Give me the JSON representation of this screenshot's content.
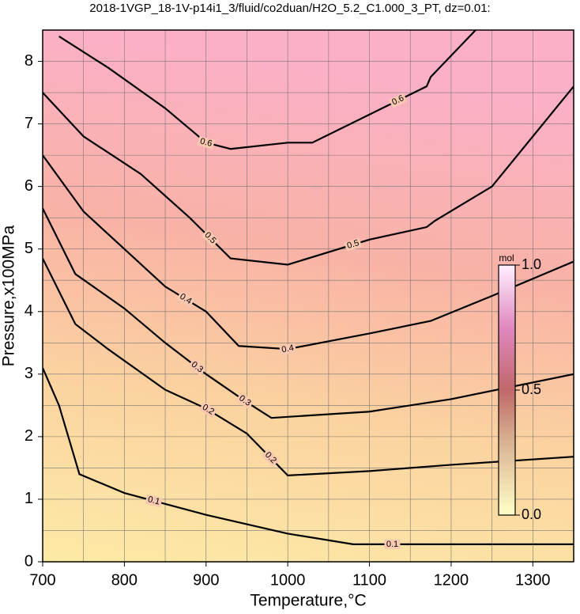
{
  "chart_data": {
    "type": "contour",
    "title": "2018-1VGP_18-1V-p14i1_3/fluid/co2duan/H2O_5.2_C1.000_3_PT, dz=0.01:",
    "xlabel": "Temperature,°C",
    "ylabel": "Pressure,x100MPa",
    "xlim": [
      700,
      1350
    ],
    "ylim": [
      0,
      8.5
    ],
    "xticks": [
      700,
      800,
      900,
      1000,
      1100,
      1200,
      1300
    ],
    "yticks": [
      0,
      1,
      2,
      3,
      4,
      5,
      6,
      7,
      8
    ],
    "xgrid": [
      750,
      800,
      850,
      900,
      950,
      1000,
      1050,
      1100,
      1150,
      1200,
      1250,
      1300
    ],
    "ygrid": [
      0.5,
      1,
      1.5,
      2,
      2.5,
      3,
      3.5,
      4,
      4.5,
      5,
      5.5,
      6,
      6.5,
      7,
      7.5,
      8
    ],
    "contours": [
      {
        "level": 0.1,
        "x": [
          700,
          720,
          745,
          800,
          900,
          1000,
          1080,
          1200,
          1350
        ],
        "y": [
          3.1,
          2.5,
          1.4,
          1.1,
          0.75,
          0.45,
          0.28,
          0.28,
          0.28
        ]
      },
      {
        "level": 0.2,
        "x": [
          700,
          740,
          780,
          850,
          900,
          950,
          1000,
          1100,
          1200,
          1350
        ],
        "y": [
          4.85,
          3.8,
          3.4,
          2.75,
          2.45,
          2.05,
          1.38,
          1.45,
          1.55,
          1.68
        ]
      },
      {
        "level": 0.3,
        "x": [
          700,
          740,
          800,
          850,
          900,
          950,
          980,
          1100,
          1200,
          1350
        ],
        "y": [
          5.65,
          4.6,
          4.05,
          3.5,
          3.0,
          2.55,
          2.3,
          2.4,
          2.6,
          3.0
        ]
      },
      {
        "level": 0.4,
        "x": [
          700,
          750,
          800,
          850,
          900,
          940,
          1000,
          1100,
          1175,
          1250,
          1350
        ],
        "y": [
          6.5,
          5.6,
          5.0,
          4.4,
          4.0,
          3.45,
          3.4,
          3.65,
          3.85,
          4.25,
          4.8
        ]
      },
      {
        "level": 0.5,
        "x": [
          700,
          750,
          820,
          880,
          930,
          1000,
          1100,
          1170,
          1180,
          1250,
          1350
        ],
        "y": [
          7.5,
          6.8,
          6.2,
          5.5,
          4.85,
          4.75,
          5.15,
          5.35,
          5.45,
          6.0,
          7.6
        ]
      },
      {
        "level": 0.6,
        "x": [
          720,
          780,
          850,
          900,
          930,
          1000,
          1030,
          1100,
          1170,
          1175,
          1230
        ],
        "y": [
          8.4,
          7.9,
          7.25,
          6.7,
          6.6,
          6.7,
          6.7,
          7.15,
          7.6,
          7.75,
          8.5
        ]
      }
    ],
    "colorbar": {
      "label": "mol",
      "lim": [
        0,
        1
      ],
      "ticks": [
        {
          "value": 0,
          "label": "0.0"
        },
        {
          "value": 0.5,
          "label": "0.5"
        },
        {
          "value": 1,
          "label": "1.0"
        }
      ]
    }
  }
}
